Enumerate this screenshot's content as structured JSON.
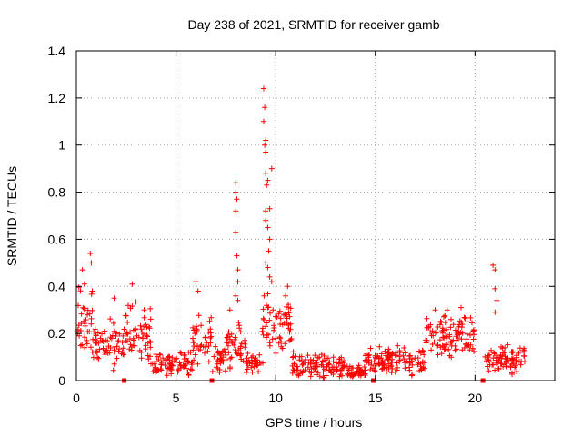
{
  "chart_data": {
    "type": "scatter",
    "title": "Day 238 of 2021, SRMTID for receiver gamb",
    "xlabel": "GPS time / hours",
    "ylabel": "SRMTID / TECUs",
    "xlim": [
      0,
      24
    ],
    "ylim": [
      0,
      1.4
    ],
    "x_ticks": [
      0,
      5,
      10,
      15,
      20
    ],
    "y_ticks": [
      0,
      0.2,
      0.4,
      0.6,
      0.8,
      1.0,
      1.2,
      1.4
    ],
    "x_tick_labels": [
      "0",
      "5",
      "10",
      "15",
      "20"
    ],
    "y_tick_labels": [
      "0",
      "0.2",
      "0.4",
      "0.6",
      "0.8",
      "1",
      "1.2",
      "1.4"
    ],
    "grid": true,
    "marker": "+",
    "color": "#ff0000",
    "gap_markers_x": [
      2.4,
      6.8,
      14.9,
      20.4
    ],
    "series": [
      {
        "name": "SRMTID",
        "segments": [
          {
            "x0": 0.0,
            "x1": 0.8,
            "base": 0.25,
            "spread": 0.1
          },
          {
            "x0": 0.8,
            "x1": 2.4,
            "base": 0.15,
            "spread": 0.07
          },
          {
            "x0": 2.4,
            "x1": 3.8,
            "base": 0.19,
            "spread": 0.09
          },
          {
            "x0": 3.8,
            "x1": 5.8,
            "base": 0.07,
            "spread": 0.04
          },
          {
            "x0": 5.8,
            "x1": 6.8,
            "base": 0.16,
            "spread": 0.08
          },
          {
            "x0": 6.8,
            "x1": 7.5,
            "base": 0.08,
            "spread": 0.04
          },
          {
            "x0": 7.5,
            "x1": 8.5,
            "base": 0.14,
            "spread": 0.07
          },
          {
            "x0": 8.5,
            "x1": 9.3,
            "base": 0.07,
            "spread": 0.04
          },
          {
            "x0": 9.3,
            "x1": 10.8,
            "base": 0.22,
            "spread": 0.1
          },
          {
            "x0": 10.8,
            "x1": 13.5,
            "base": 0.06,
            "spread": 0.04
          },
          {
            "x0": 13.5,
            "x1": 14.5,
            "base": 0.035,
            "spread": 0.02
          },
          {
            "x0": 14.5,
            "x1": 17.5,
            "base": 0.09,
            "spread": 0.04
          },
          {
            "x0": 17.5,
            "x1": 20.0,
            "base": 0.19,
            "spread": 0.06
          },
          {
            "x0": 20.5,
            "x1": 22.5,
            "base": 0.09,
            "spread": 0.04
          }
        ],
        "peaks": [
          {
            "x": 0.3,
            "y": 0.47
          },
          {
            "x": 0.4,
            "y": 0.41
          },
          {
            "x": 0.7,
            "y": 0.54
          },
          {
            "x": 0.75,
            "y": 0.5
          },
          {
            "x": 0.8,
            "y": 0.38
          },
          {
            "x": 1.9,
            "y": 0.35
          },
          {
            "x": 2.8,
            "y": 0.41
          },
          {
            "x": 3.4,
            "y": 0.3
          },
          {
            "x": 6.0,
            "y": 0.42
          },
          {
            "x": 6.1,
            "y": 0.38
          },
          {
            "x": 7.7,
            "y": 0.3
          },
          {
            "x": 8.0,
            "y": 0.84
          },
          {
            "x": 8.0,
            "y": 0.8
          },
          {
            "x": 8.05,
            "y": 0.77
          },
          {
            "x": 8.0,
            "y": 0.72
          },
          {
            "x": 8.0,
            "y": 0.63
          },
          {
            "x": 8.05,
            "y": 0.53
          },
          {
            "x": 8.1,
            "y": 0.47
          },
          {
            "x": 8.1,
            "y": 0.42
          },
          {
            "x": 8.0,
            "y": 0.36
          },
          {
            "x": 8.1,
            "y": 0.34
          },
          {
            "x": 9.4,
            "y": 1.24
          },
          {
            "x": 9.45,
            "y": 1.16
          },
          {
            "x": 9.4,
            "y": 1.1
          },
          {
            "x": 9.5,
            "y": 1.02
          },
          {
            "x": 9.45,
            "y": 1.0
          },
          {
            "x": 9.5,
            "y": 0.97
          },
          {
            "x": 9.5,
            "y": 0.88
          },
          {
            "x": 9.6,
            "y": 0.85
          },
          {
            "x": 9.55,
            "y": 0.83
          },
          {
            "x": 9.8,
            "y": 0.9
          },
          {
            "x": 9.5,
            "y": 0.72
          },
          {
            "x": 9.7,
            "y": 0.73
          },
          {
            "x": 9.5,
            "y": 0.68
          },
          {
            "x": 9.6,
            "y": 0.65
          },
          {
            "x": 9.7,
            "y": 0.6
          },
          {
            "x": 9.65,
            "y": 0.55
          },
          {
            "x": 9.5,
            "y": 0.5
          },
          {
            "x": 9.6,
            "y": 0.48
          },
          {
            "x": 9.7,
            "y": 0.44
          },
          {
            "x": 9.8,
            "y": 0.42
          },
          {
            "x": 10.6,
            "y": 0.4
          },
          {
            "x": 10.5,
            "y": 0.36
          },
          {
            "x": 20.9,
            "y": 0.49
          },
          {
            "x": 21.0,
            "y": 0.47
          },
          {
            "x": 21.0,
            "y": 0.39
          },
          {
            "x": 21.1,
            "y": 0.34
          },
          {
            "x": 21.0,
            "y": 0.29
          },
          {
            "x": 18.0,
            "y": 0.3
          },
          {
            "x": 18.6,
            "y": 0.3
          },
          {
            "x": 19.3,
            "y": 0.31
          }
        ]
      }
    ]
  }
}
